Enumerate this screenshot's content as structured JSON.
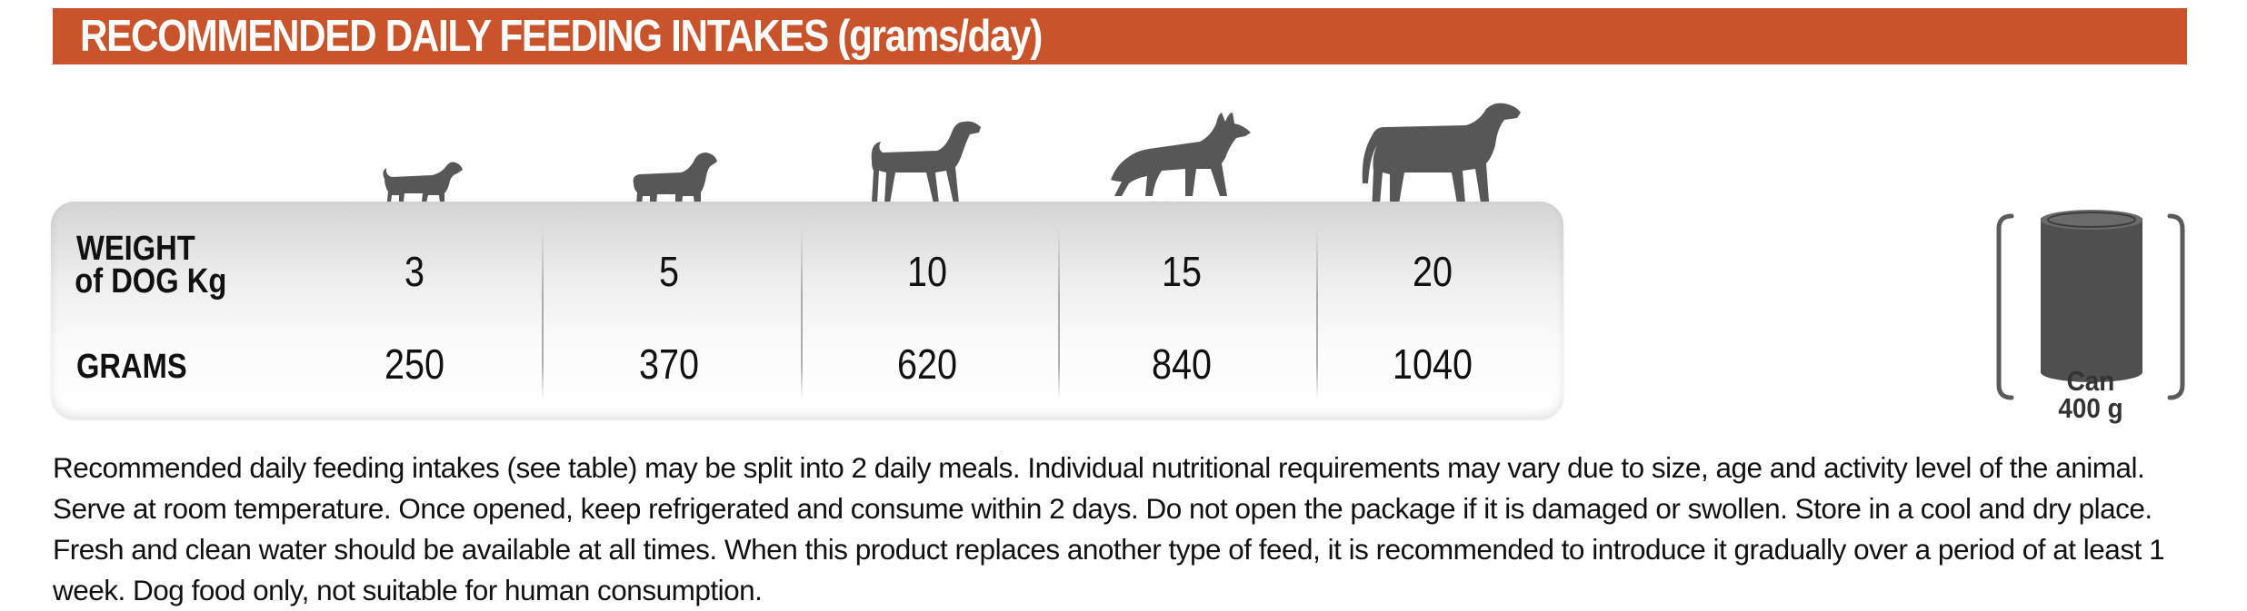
{
  "banner": {
    "title": "RECOMMENDED DAILY FEEDING INTAKES (grams/day)"
  },
  "table": {
    "weight_label_line1": "WEIGHT",
    "weight_label_line2": "of DOG  Kg",
    "grams_label": "GRAMS",
    "columns": [
      {
        "weight": "3",
        "grams": "250",
        "icon": "small-dog-icon"
      },
      {
        "weight": "5",
        "grams": "370",
        "icon": "spaniel-dog-icon"
      },
      {
        "weight": "10",
        "grams": "620",
        "icon": "pointer-dog-icon"
      },
      {
        "weight": "15",
        "grams": "840",
        "icon": "shepherd-dog-icon"
      },
      {
        "weight": "20",
        "grams": "1040",
        "icon": "great-dane-dog-icon"
      }
    ]
  },
  "can": {
    "label_line1": "Can",
    "label_line2": "400 g",
    "icon": "can-icon"
  },
  "notes": "Recommended daily feeding intakes (see table) may be split into 2 daily meals. Individual nutritional requirements may vary due to size, age and activity level of the animal. Serve at room temperature. Once opened, keep refrigerated and consume within 2 days. Do not open the package if it is damaged or swollen. Store in a cool and dry place. Fresh and clean water should be available at all times. When this product replaces another type of feed, it is recommended to introduce it gradually over a period of at least 1 week. Dog food only, not suitable for human consumption.",
  "colors": {
    "banner": "#c9542c",
    "dog": "#575757",
    "can": "#4f4f4f"
  }
}
